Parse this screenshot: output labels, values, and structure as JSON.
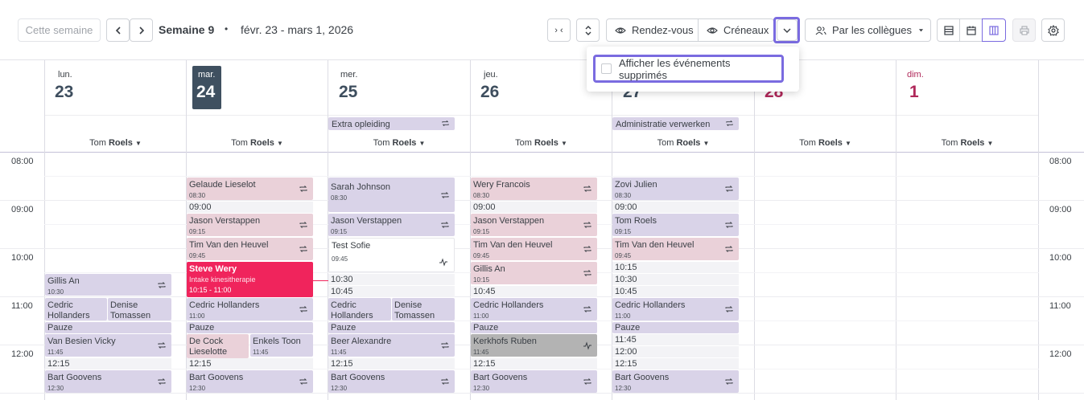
{
  "toolbar": {
    "this_week": "Cette semaine",
    "prev": "‹",
    "next": "›",
    "week_label": "Semaine 9",
    "bullet": "•",
    "date_range": "févr. 23 - mars 1, 2026",
    "collapse": "› ‹",
    "rendezvous": "Rendez-vous",
    "creneaux": "Créneaux",
    "par_collegues": "Par les collègues"
  },
  "dropdown": {
    "option": "Afficher les événements supprimés"
  },
  "days": [
    {
      "name": "lun.",
      "num": "23",
      "colleague": "Tom",
      "colleague_bold": "Roels"
    },
    {
      "name": "mar.",
      "num": "24",
      "colleague": "Tom",
      "colleague_bold": "Roels"
    },
    {
      "name": "mer.",
      "num": "25",
      "colleague": "Tom",
      "colleague_bold": "Roels"
    },
    {
      "name": "jeu.",
      "num": "26",
      "colleague": "Tom",
      "colleague_bold": "Roels"
    },
    {
      "name": "",
      "num": "27",
      "colleague": "Tom",
      "colleague_bold": "Roels"
    },
    {
      "name": "",
      "num": "28",
      "colleague": "Tom",
      "colleague_bold": "Roels"
    },
    {
      "name": "dim.",
      "num": "1",
      "colleague": "Tom",
      "colleague_bold": "Roels"
    }
  ],
  "allday": [
    {
      "title": "Extra opleiding"
    },
    {
      "title": "Administratie verwerken"
    }
  ],
  "hours": [
    "08:00",
    "09:00",
    "10:00",
    "11:00",
    "12:00"
  ],
  "events": {
    "e_gillis": {
      "t": "Gillis An",
      "s": "10:30"
    },
    "e_cedric1": {
      "t": "Cedric Hollanders",
      "s": ""
    },
    "e_denise1": {
      "t": "Denise Tomassen",
      "s": ""
    },
    "e_pauze1": {
      "t": "Pauze",
      "s": ""
    },
    "e_vanbes": {
      "t": "Van Besien Vicky",
      "s": "11:45"
    },
    "e_1215a": {
      "t": "12:15",
      "s": ""
    },
    "e_bart1": {
      "t": "Bart Goovens",
      "s": "12:30"
    },
    "e_gelaude": {
      "t": "Gelaude Lieselot",
      "s": "08:30"
    },
    "e_0900b": {
      "t": "09:00",
      "s": ""
    },
    "e_jason2": {
      "t": "Jason Verstappen",
      "s": "09:15"
    },
    "e_tim2": {
      "t": "Tim Van den Heuvel",
      "s": "09:45"
    },
    "e_steve": {
      "t": "Steve Wery",
      "s": "Intake kinesitherapie",
      "x": "10:15 - 11:00"
    },
    "e_cedric2": {
      "t": "Cedric Hollanders",
      "s": "11:00"
    },
    "e_pauze2": {
      "t": "Pauze",
      "s": ""
    },
    "e_decock": {
      "t": "De Cock Lieselotte",
      "s": ""
    },
    "e_enkels": {
      "t": "Enkels Toon",
      "s": "11:45"
    },
    "e_1215b": {
      "t": "12:15",
      "s": ""
    },
    "e_bart2": {
      "t": "Bart Goovens",
      "s": "12:30"
    },
    "e_sarah": {
      "t": "Sarah Johnson",
      "s": "08:30"
    },
    "e_jason3": {
      "t": "Jason Verstappen",
      "s": "09:15"
    },
    "e_sofie": {
      "t": "Test Sofie",
      "s": "09:45"
    },
    "e_1030c": {
      "t": "10:30",
      "s": ""
    },
    "e_1045c": {
      "t": "10:45",
      "s": ""
    },
    "e_cedric3": {
      "t": "Cedric Hollanders",
      "s": ""
    },
    "e_denise3": {
      "t": "Denise Tomassen",
      "s": ""
    },
    "e_pauze3": {
      "t": "Pauze",
      "s": ""
    },
    "e_beer": {
      "t": "Beer Alexandre",
      "s": "11:45"
    },
    "e_1215c": {
      "t": "12:15",
      "s": ""
    },
    "e_bart3": {
      "t": "Bart Goovens",
      "s": "12:30"
    },
    "e_wery": {
      "t": "Wery Francois",
      "s": "08:30"
    },
    "e_0900d": {
      "t": "09:00",
      "s": ""
    },
    "e_jason4": {
      "t": "Jason Verstappen",
      "s": "09:15"
    },
    "e_tim4": {
      "t": "Tim Van den Heuvel",
      "s": "09:45"
    },
    "e_gillis4": {
      "t": "Gillis An",
      "s": "10:15"
    },
    "e_1045d": {
      "t": "10:45",
      "s": ""
    },
    "e_cedric4": {
      "t": "Cedric Hollanders",
      "s": "11:00"
    },
    "e_pauze4": {
      "t": "Pauze",
      "s": ""
    },
    "e_kerk": {
      "t": "Kerkhofs Ruben",
      "s": "11:45"
    },
    "e_1215d": {
      "t": "12:15",
      "s": ""
    },
    "e_bart4": {
      "t": "Bart Goovens",
      "s": "12:30"
    },
    "e_zovi": {
      "t": "Zovi Julien",
      "s": "08:30"
    },
    "e_0900e": {
      "t": "09:00",
      "s": ""
    },
    "e_tom5": {
      "t": "Tom Roels",
      "s": "09:15"
    },
    "e_tim5": {
      "t": "Tim Van den Heuvel",
      "s": "09:45"
    },
    "e_1015e": {
      "t": "10:15",
      "s": ""
    },
    "e_1030e": {
      "t": "10:30",
      "s": ""
    },
    "e_1045e": {
      "t": "10:45",
      "s": ""
    },
    "e_cedric5": {
      "t": "Cedric Hollanders",
      "s": "11:00"
    },
    "e_pauze5": {
      "t": "Pauze",
      "s": ""
    },
    "e_1145e": {
      "t": "11:45",
      "s": ""
    },
    "e_1200e": {
      "t": "12:00",
      "s": ""
    },
    "e_1215e": {
      "t": "12:15",
      "s": ""
    },
    "e_bart5": {
      "t": "Bart Goovens",
      "s": "12:30"
    }
  },
  "colors": {
    "accent": "#7a6be0",
    "today_bg": "#3f5060",
    "weekend": "#b0285a",
    "urgent": "#f0245c"
  }
}
